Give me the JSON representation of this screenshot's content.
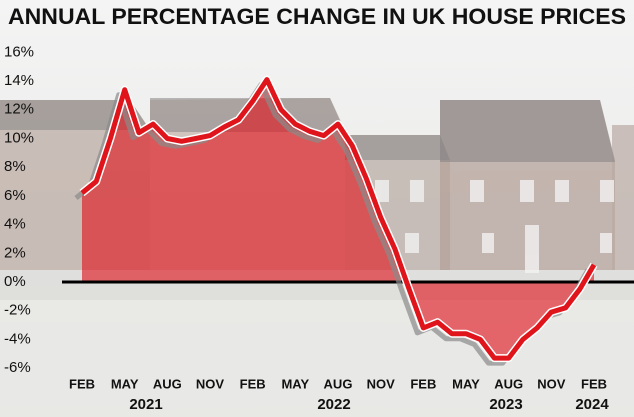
{
  "chart_data": {
    "type": "area-line",
    "title": "ANNUAL PERCENTAGE CHANGE IN UK HOUSE PRICES",
    "categories": [
      "FEB",
      null,
      null,
      "MAY",
      null,
      null,
      "AUG",
      null,
      null,
      "NOV",
      null,
      null,
      "FEB",
      null,
      null,
      "MAY",
      null,
      null,
      "AUG",
      null,
      null,
      "NOV",
      null,
      null,
      "FEB",
      null,
      null,
      "MAY",
      null,
      null,
      "AUG",
      null,
      null,
      "NOV",
      null,
      null,
      "FEB"
    ],
    "year_labels": [
      "2021",
      "2022",
      "2023",
      "2024"
    ],
    "series": [
      {
        "color": "#e0141b",
        "values": [
          6.2,
          7.0,
          10.0,
          13.4,
          10.4,
          11.0,
          10.0,
          9.8,
          10.0,
          10.2,
          10.8,
          11.3,
          12.6,
          14.1,
          12.0,
          11.0,
          10.5,
          10.2,
          11.0,
          9.5,
          7.2,
          4.5,
          2.3,
          -0.5,
          -3.2,
          -2.8,
          -3.6,
          -3.6,
          -4.0,
          -5.3,
          -5.3,
          -4.0,
          -3.2,
          -2.1,
          -1.8,
          -0.5,
          1.2
        ]
      }
    ],
    "ylim": [
      -6.8,
      17
    ],
    "yticks": [
      {
        "value": -6,
        "label": "-6%"
      },
      {
        "value": -4,
        "label": "-4%"
      },
      {
        "value": -2,
        "label": "-2%"
      },
      {
        "value": 0,
        "label": "0%"
      },
      {
        "value": 2,
        "label": "2%"
      },
      {
        "value": 4,
        "label": "4%"
      },
      {
        "value": 6,
        "label": "6%"
      },
      {
        "value": 8,
        "label": "8%"
      },
      {
        "value": 10,
        "label": "10%"
      },
      {
        "value": 12,
        "label": "12%"
      },
      {
        "value": 14,
        "label": "14%"
      },
      {
        "value": 16,
        "label": "16%"
      }
    ],
    "zero_line": true
  }
}
